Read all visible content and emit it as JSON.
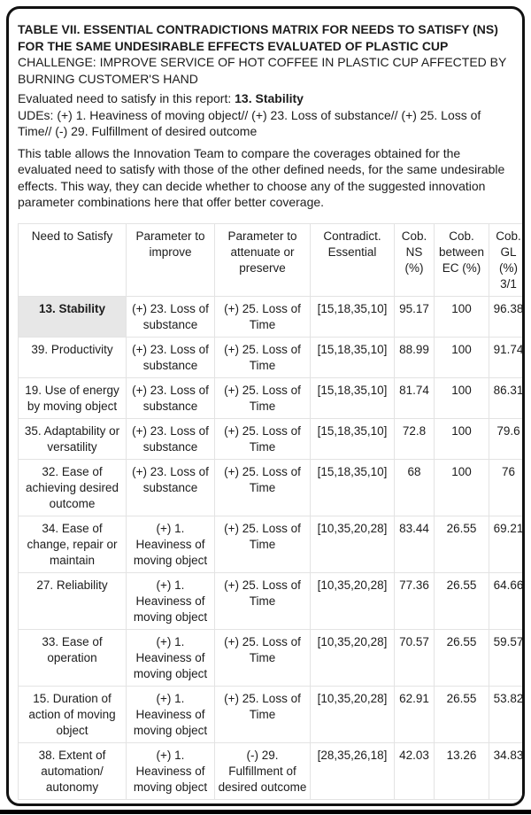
{
  "colors": {
    "page_border": "#111111",
    "text": "#1c1c1c",
    "table_border": "#e3e3e3",
    "highlight_cell_bg": "#e7e7e7"
  },
  "header": {
    "title": "TABLE VII. ESSENTIAL CONTRADICTIONS MATRIX FOR NEEDS TO SATISFY (NS) FOR THE SAME UNDESIRABLE EFFECTS EVALUATED OF PLASTIC CUP",
    "challenge": "CHALLENGE: IMPROVE SERVICE OF HOT COFFEE IN PLASTIC CUP AFFECTED BY BURNING CUSTOMER'S HAND",
    "evaluated_label": "Evaluated need to satisfy in this report:",
    "evaluated_value": "13. Stability",
    "udes": "UDEs: (+) 1. Heaviness of moving object// (+) 23. Loss of substance// (+) 25. Loss of Time// (-) 29. Fulfillment of desired outcome",
    "description": "This table allows the Innovation Team to compare the coverages obtained for the evaluated need to satisfy with those of the other defined needs, for the same undesirable effects. This way, they can decide whether to choose any of the suggested innovation parameter combinations here that offer better coverage."
  },
  "table": {
    "columns": [
      "Need to Satisfy",
      "Parameter to improve",
      "Parameter to attenuate or preserve",
      "Contradict. Essential",
      "Cob. NS (%)",
      "Cob. between EC (%)",
      "Cob. GL (%) 3/1"
    ],
    "highlight_row_index": 0,
    "rows": [
      [
        "13. Stability",
        "(+) 23. Loss of substance",
        "(+) 25. Loss of Time",
        "[15,18,35,10]",
        "95.17",
        "100",
        "96.38"
      ],
      [
        "39. Productivity",
        "(+) 23. Loss of substance",
        "(+) 25. Loss of Time",
        "[15,18,35,10]",
        "88.99",
        "100",
        "91.74"
      ],
      [
        "19. Use of energy by moving object",
        "(+) 23. Loss of substance",
        "(+) 25. Loss of Time",
        "[15,18,35,10]",
        "81.74",
        "100",
        "86.31"
      ],
      [
        "35. Adaptability or versatility",
        "(+) 23. Loss of substance",
        "(+) 25. Loss of Time",
        "[15,18,35,10]",
        "72.8",
        "100",
        "79.6"
      ],
      [
        "32. Ease of achieving desired outcome",
        "(+) 23. Loss of substance",
        "(+) 25. Loss of Time",
        "[15,18,35,10]",
        "68",
        "100",
        "76"
      ],
      [
        "34. Ease of change, repair or maintain",
        "(+) 1. Heaviness of moving object",
        "(+) 25. Loss of Time",
        "[10,35,20,28]",
        "83.44",
        "26.55",
        "69.21"
      ],
      [
        "27. Reliability",
        "(+) 1. Heaviness of moving object",
        "(+) 25. Loss of Time",
        "[10,35,20,28]",
        "77.36",
        "26.55",
        "64.66"
      ],
      [
        "33. Ease of operation",
        "(+) 1. Heaviness of moving object",
        "(+) 25. Loss of Time",
        "[10,35,20,28]",
        "70.57",
        "26.55",
        "59.57"
      ],
      [
        "15. Duration of action of moving object",
        "(+) 1. Heaviness of moving object",
        "(+) 25. Loss of Time",
        "[10,35,20,28]",
        "62.91",
        "26.55",
        "53.82"
      ],
      [
        "38. Extent of automation/ autonomy",
        "(+) 1. Heaviness of moving object",
        "(-) 29. Fulfillment of desired outcome",
        "[28,35,26,18]",
        "42.03",
        "13.26",
        "34.83"
      ]
    ]
  }
}
